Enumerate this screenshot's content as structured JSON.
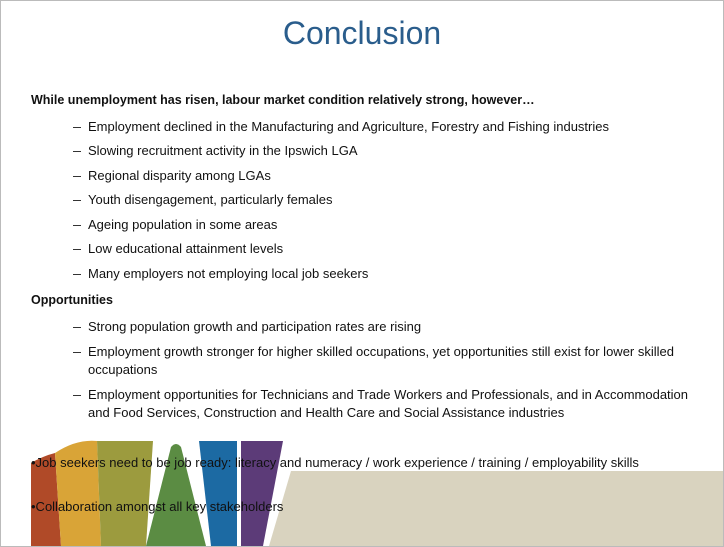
{
  "title": "Conclusion",
  "sections": [
    {
      "heading": "While unemployment has risen, labour market condition relatively strong, however…",
      "items": [
        "Employment declined in the Manufacturing and Agriculture, Forestry and Fishing industries",
        "Slowing recruitment activity in the Ipswich LGA",
        "Regional disparity among LGAs",
        "Youth disengagement, particularly females",
        "Ageing population in some areas",
        "Low educational attainment levels",
        "Many employers not employing local job seekers"
      ]
    },
    {
      "heading": "Opportunities",
      "items": [
        "Strong population growth and participation rates are rising",
        "Employment growth stronger for higher skilled occupations, yet opportunities still exist for lower skilled occupations",
        "Employment opportunities for Technicians and Trade Workers and Professionals, and in Accommodation and Food Services, Construction and Health Care and Social Assistance industries"
      ]
    }
  ],
  "notes": [
    "•Job seekers need to be job ready:  literacy and numeracy / work experience / training /  employability skills",
    "•Collaboration amongst all key stakeholders"
  ]
}
